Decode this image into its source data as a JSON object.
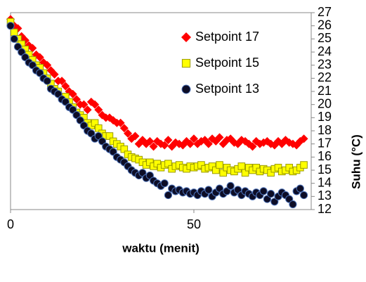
{
  "chart_data": {
    "type": "scatter",
    "xlabel": "waktu (menit)",
    "ylabel": "Suhu (°C)",
    "xlim": [
      0,
      82
    ],
    "xticks": [
      0,
      50
    ],
    "ylim": [
      12,
      27
    ],
    "yticks": [
      12,
      13,
      14,
      15,
      16,
      17,
      18,
      19,
      20,
      21,
      22,
      23,
      24,
      25,
      26,
      27
    ],
    "y_axis_side": "right",
    "legend": "upper right",
    "x": [
      0,
      1,
      2,
      3,
      4,
      5,
      6,
      7,
      8,
      9,
      10,
      11,
      12,
      13,
      14,
      15,
      16,
      17,
      18,
      19,
      20,
      21,
      22,
      23,
      24,
      25,
      26,
      27,
      28,
      29,
      30,
      31,
      32,
      33,
      34,
      35,
      36,
      37,
      38,
      39,
      40,
      41,
      42,
      43,
      44,
      45,
      46,
      47,
      48,
      49,
      50,
      51,
      52,
      53,
      54,
      55,
      56,
      57,
      58,
      59,
      60,
      61,
      62,
      63,
      64,
      65,
      66,
      67,
      68,
      69,
      70,
      71,
      72,
      73,
      74,
      75,
      76,
      77,
      78,
      79,
      80
    ],
    "series": [
      {
        "name": "Setpoint 17",
        "color": "#ff0000",
        "marker": "diamond",
        "values": [
          26.5,
          26,
          25.8,
          25.2,
          24.9,
          24.5,
          24.3,
          23.8,
          23.6,
          23.2,
          23,
          22.6,
          22.3,
          21.8,
          21.8,
          21.4,
          21,
          20.8,
          20.4,
          20,
          20,
          19.6,
          20.2,
          20,
          19.6,
          19.2,
          19,
          19,
          18.8,
          18.6,
          18.6,
          18.2,
          17.8,
          17.4,
          17.6,
          17,
          17.3,
          17,
          17.2,
          16.8,
          17.2,
          17,
          16.9,
          17.3,
          16.8,
          17.1,
          17,
          16.9,
          17.2,
          17,
          17.4,
          17,
          17.2,
          17.3,
          17,
          17.4,
          17.2,
          17.5,
          17,
          17.3,
          17.4,
          17.1,
          17,
          17.3,
          17.2,
          17,
          16.8,
          17.2,
          17,
          17.1,
          17.2,
          17,
          16.9,
          17.2,
          17,
          17.3,
          17.1,
          17,
          16.9,
          17.2,
          17.4
        ]
      },
      {
        "name": "Setpoint 15",
        "color": "#ffff00",
        "marker": "square",
        "values": [
          26.3,
          25.5,
          25,
          24.6,
          24.2,
          23.8,
          23.4,
          23,
          22.8,
          22.4,
          22,
          21.6,
          21.2,
          21,
          20.6,
          20.6,
          20.2,
          19.8,
          19.4,
          19.2,
          19,
          18.6,
          18.4,
          18.6,
          18.2,
          17.8,
          17.6,
          17.6,
          17.2,
          17,
          16.8,
          16.6,
          16.2,
          16,
          15.9,
          15.8,
          15.6,
          15.4,
          15.6,
          15.3,
          15.5,
          15.2,
          15.4,
          15.5,
          15.1,
          15.3,
          15.4,
          15.2,
          15.1,
          15.3,
          15.2,
          15.3,
          15.4,
          15.1,
          15.2,
          15.3,
          15,
          15.4,
          14.8,
          15.2,
          15,
          14.9,
          15.1,
          15.3,
          14.8,
          15.2,
          15,
          15.2,
          14.9,
          15.1,
          15,
          14.8,
          15.1,
          15.2,
          14.9,
          15,
          15.2,
          14.9,
          15,
          15.2,
          15.4
        ]
      },
      {
        "name": "Setpoint 13",
        "color": "#0d0d26",
        "marker": "circle",
        "values": [
          26,
          25,
          24.4,
          24,
          23.6,
          23.2,
          23,
          22.6,
          22.4,
          22,
          21.8,
          21.2,
          21,
          20.8,
          20.4,
          20.2,
          19.8,
          19.6,
          19.2,
          18.8,
          18.4,
          18,
          17.8,
          17.4,
          17.6,
          17.2,
          16.8,
          16.6,
          16.4,
          16,
          15.8,
          15.6,
          15.3,
          15,
          14.8,
          14.6,
          14.8,
          14.4,
          14.6,
          14.2,
          14,
          13.8,
          14,
          13.1,
          13.6,
          13.4,
          13.5,
          13.3,
          13.4,
          13.2,
          13.3,
          13.1,
          13.4,
          13.2,
          13.5,
          13,
          13.3,
          13.6,
          13.2,
          13.4,
          13.8,
          13.3,
          13.5,
          13.1,
          13.4,
          13.2,
          13,
          13.3,
          13.1,
          13.4,
          12.8,
          13.2,
          12.6,
          13,
          13.3,
          13.1,
          12.8,
          12.4,
          13.4,
          13.6,
          13.1
        ]
      }
    ]
  }
}
